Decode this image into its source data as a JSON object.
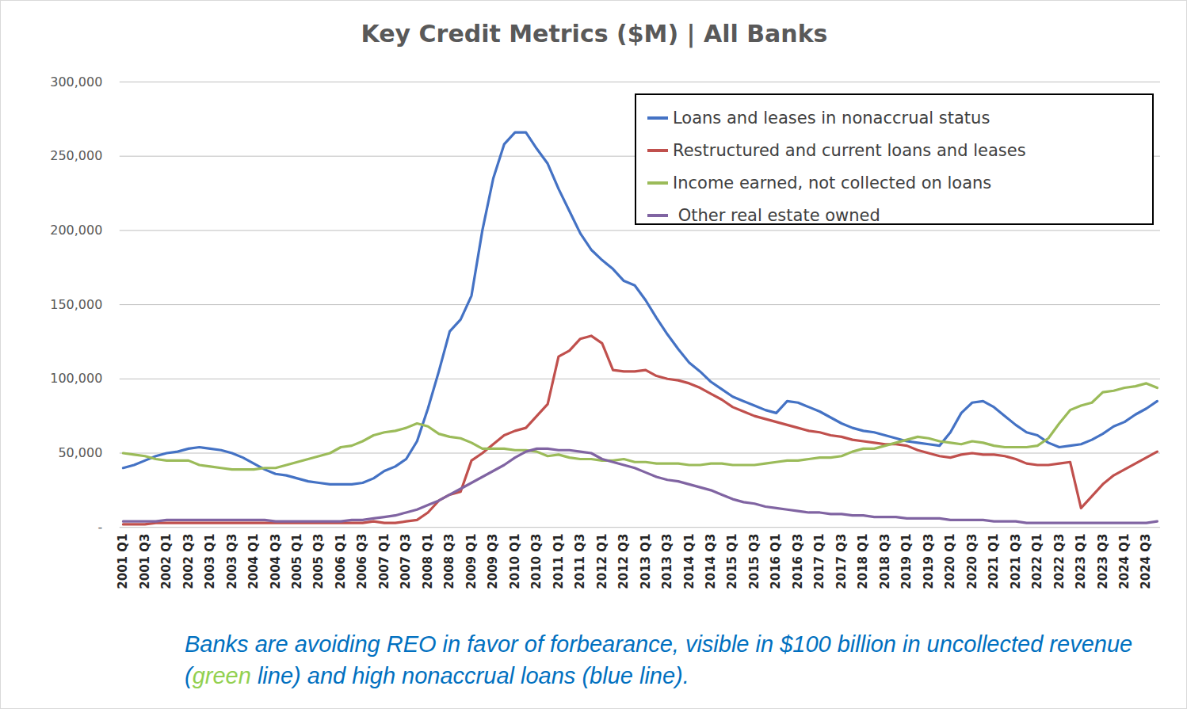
{
  "chart_data": {
    "type": "line",
    "title": "Key Credit Metrics ($M) | All Banks",
    "annotation": [
      {
        "text": "Banks are avoiding REO in favor of forbearance, visible in $100 billion in uncollected revenue ("
      },
      {
        "text": "green",
        "color": "#92d050"
      },
      {
        "text": " line) and high nonaccrual loans (blue line)."
      }
    ],
    "categories": [
      "2001 Q1",
      null,
      "2001 Q3",
      null,
      "2002 Q1",
      null,
      "2002 Q3",
      null,
      "2003 Q1",
      null,
      "2003 Q3",
      null,
      "2004 Q1",
      null,
      "2004 Q3",
      null,
      "2005 Q1",
      null,
      "2005 Q3",
      null,
      "2006 Q1",
      null,
      "2006 Q3",
      null,
      "2007 Q1",
      null,
      "2007 Q3",
      null,
      "2008 Q1",
      null,
      "2008 Q3",
      null,
      "2009 Q1",
      null,
      "2009 Q3",
      null,
      "2010 Q1",
      null,
      "2010 Q3",
      null,
      "2011 Q1",
      null,
      "2011 Q3",
      null,
      "2012 Q1",
      null,
      "2012 Q3",
      null,
      "2013 Q1",
      null,
      "2013 Q3",
      null,
      "2014 Q1",
      null,
      "2014 Q3",
      null,
      "2015 Q1",
      null,
      "2015 Q3",
      null,
      "2016 Q1",
      null,
      "2016 Q3",
      null,
      "2017 Q1",
      null,
      "2017 Q3",
      null,
      "2018 Q1",
      null,
      "2018 Q3",
      null,
      "2019 Q1",
      null,
      "2019 Q3",
      null,
      "2020 Q1",
      null,
      "2020 Q3",
      null,
      "2021 Q1",
      null,
      "2021 Q3",
      null,
      "2022 Q1",
      null,
      "2022 Q3",
      null,
      "2023 Q1",
      null,
      "2023 Q3",
      null,
      "2024 Q1",
      null,
      "2024 Q3",
      null
    ],
    "series": [
      {
        "name": "Loans and leases in nonaccrual status",
        "color": "#4472c4",
        "values": [
          40000,
          42000,
          45000,
          48000,
          50000,
          51000,
          53000,
          54000,
          53000,
          52000,
          50000,
          47000,
          43000,
          39000,
          36000,
          35000,
          33000,
          31000,
          30000,
          29000,
          29000,
          29000,
          30000,
          33000,
          38000,
          41000,
          46000,
          58000,
          80000,
          105000,
          132000,
          140000,
          156000,
          200000,
          235000,
          258000,
          266000,
          266000,
          255000,
          245000,
          228000,
          213000,
          198000,
          187000,
          180000,
          174000,
          166000,
          163000,
          153000,
          141000,
          130000,
          120000,
          111000,
          105000,
          98000,
          93000,
          88000,
          85000,
          82000,
          79000,
          77000,
          85000,
          84000,
          81000,
          78000,
          74000,
          70000,
          67000,
          65000,
          64000,
          62000,
          60000,
          58000,
          57000,
          56000,
          55000,
          64000,
          77000,
          84000,
          85000,
          81000,
          75000,
          69000,
          64000,
          62000,
          57000,
          54000,
          55000,
          56000,
          59000,
          63000,
          68000,
          71000,
          76000,
          80000,
          85000
        ]
      },
      {
        "name": "Restructured and current loans and leases",
        "color": "#c0504d",
        "values": [
          2000,
          2000,
          2000,
          3000,
          3000,
          3000,
          3000,
          3000,
          3000,
          3000,
          3000,
          3000,
          3000,
          3000,
          3000,
          3000,
          3000,
          3000,
          3000,
          3000,
          3000,
          3000,
          3000,
          4000,
          3000,
          3000,
          4000,
          5000,
          10000,
          18000,
          22000,
          24000,
          45000,
          50000,
          56000,
          62000,
          65000,
          67000,
          75000,
          83000,
          115000,
          119000,
          127000,
          129000,
          124000,
          106000,
          105000,
          105000,
          106000,
          102000,
          100000,
          99000,
          97000,
          94000,
          90000,
          86000,
          81000,
          78000,
          75000,
          73000,
          71000,
          69000,
          67000,
          65000,
          64000,
          62000,
          61000,
          59000,
          58000,
          57000,
          56000,
          56000,
          55000,
          52000,
          50000,
          48000,
          47000,
          49000,
          50000,
          49000,
          49000,
          48000,
          46000,
          43000,
          42000,
          42000,
          43000,
          44000,
          13000,
          21000,
          29000,
          35000,
          39000,
          43000,
          47000,
          51000
        ]
      },
      {
        "name": "Income earned, not collected on loans",
        "color": "#9bbb59",
        "values": [
          50000,
          49000,
          48000,
          46000,
          45000,
          45000,
          45000,
          42000,
          41000,
          40000,
          39000,
          39000,
          39000,
          40000,
          40000,
          42000,
          44000,
          46000,
          48000,
          50000,
          54000,
          55000,
          58000,
          62000,
          64000,
          65000,
          67000,
          70000,
          68000,
          63000,
          61000,
          60000,
          57000,
          53000,
          53000,
          53000,
          52000,
          52000,
          51000,
          48000,
          49000,
          47000,
          46000,
          46000,
          45000,
          45000,
          46000,
          44000,
          44000,
          43000,
          43000,
          43000,
          42000,
          42000,
          43000,
          43000,
          42000,
          42000,
          42000,
          43000,
          44000,
          45000,
          45000,
          46000,
          47000,
          47000,
          48000,
          51000,
          53000,
          53000,
          55000,
          57000,
          59000,
          61000,
          60000,
          58000,
          57000,
          56000,
          58000,
          57000,
          55000,
          54000,
          54000,
          54000,
          55000,
          60000,
          70000,
          79000,
          82000,
          84000,
          91000,
          92000,
          94000,
          95000,
          97000,
          94000
        ]
      },
      {
        "name": " Other real estate owned",
        "color": "#8064a2",
        "values": [
          4000,
          4000,
          4000,
          4000,
          5000,
          5000,
          5000,
          5000,
          5000,
          5000,
          5000,
          5000,
          5000,
          5000,
          4000,
          4000,
          4000,
          4000,
          4000,
          4000,
          4000,
          5000,
          5000,
          6000,
          7000,
          8000,
          10000,
          12000,
          15000,
          18000,
          22000,
          26000,
          30000,
          34000,
          38000,
          42000,
          47000,
          51000,
          53000,
          53000,
          52000,
          52000,
          51000,
          50000,
          46000,
          44000,
          42000,
          40000,
          37000,
          34000,
          32000,
          31000,
          29000,
          27000,
          25000,
          22000,
          19000,
          17000,
          16000,
          14000,
          13000,
          12000,
          11000,
          10000,
          10000,
          9000,
          9000,
          8000,
          8000,
          7000,
          7000,
          7000,
          6000,
          6000,
          6000,
          6000,
          5000,
          5000,
          5000,
          5000,
          4000,
          4000,
          4000,
          3000,
          3000,
          3000,
          3000,
          3000,
          3000,
          3000,
          3000,
          3000,
          3000,
          3000,
          3000,
          4000
        ]
      }
    ],
    "ylim": [
      0,
      300000
    ],
    "yticks": [
      {
        "value": 0,
        "label": "-"
      },
      {
        "value": 50000,
        "label": "50,000"
      },
      {
        "value": 100000,
        "label": "100,000"
      },
      {
        "value": 150000,
        "label": "150,000"
      },
      {
        "value": 200000,
        "label": "200,000"
      },
      {
        "value": 250000,
        "label": "250,000"
      },
      {
        "value": 300000,
        "label": "300,000"
      }
    ],
    "grid": true,
    "legend": "top-right"
  }
}
